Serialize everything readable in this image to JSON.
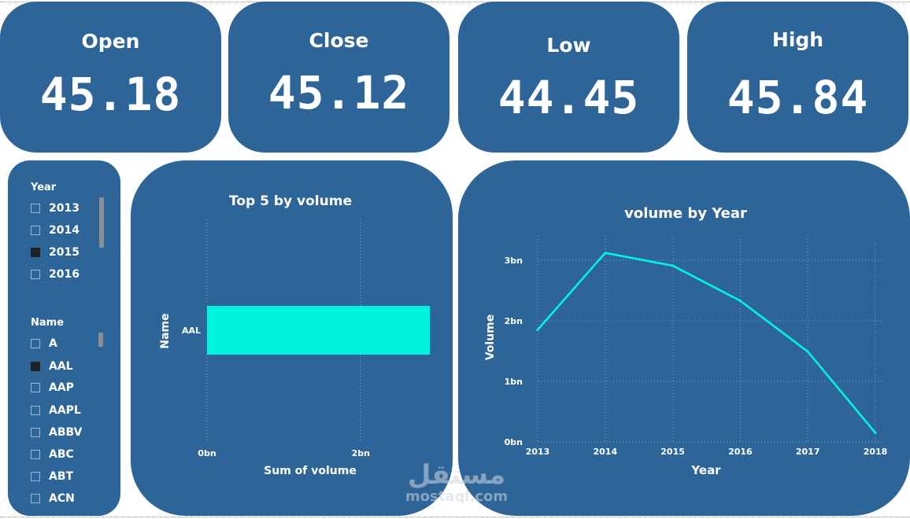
{
  "kpis": [
    {
      "label": "Open",
      "value": "45.18"
    },
    {
      "label": "Close",
      "value": "45.12"
    },
    {
      "label": "Low",
      "value": "44.45"
    },
    {
      "label": "High",
      "value": "45.84"
    }
  ],
  "slicers": {
    "year": {
      "title": "Year",
      "items": [
        {
          "label": "2013",
          "checked": false
        },
        {
          "label": "2014",
          "checked": false
        },
        {
          "label": "2015",
          "checked": true
        },
        {
          "label": "2016",
          "checked": false
        }
      ]
    },
    "name": {
      "title": "Name",
      "items": [
        {
          "label": "A",
          "checked": false
        },
        {
          "label": "AAL",
          "checked": true
        },
        {
          "label": "AAP",
          "checked": false
        },
        {
          "label": "AAPL",
          "checked": false
        },
        {
          "label": "ABBV",
          "checked": false
        },
        {
          "label": "ABC",
          "checked": false
        },
        {
          "label": "ABT",
          "checked": false
        },
        {
          "label": "ACN",
          "checked": false
        }
      ]
    }
  },
  "watermark": {
    "arabic": "مستقل",
    "latin": "mostaql.com"
  },
  "colors": {
    "card": "#2d6599",
    "series": "#00f5e1",
    "background": "#ffffff"
  },
  "chart_data": [
    {
      "type": "bar",
      "orientation": "horizontal",
      "title": "Top 5 by volume",
      "xlabel": "Sum of volume",
      "ylabel": "Name",
      "categories": [
        "AAL"
      ],
      "values": [
        2.9
      ],
      "value_unit": "bn",
      "xlim": [
        0,
        3
      ],
      "xticks": [
        0,
        2
      ],
      "xtick_labels": [
        "0bn",
        "2bn"
      ],
      "grid": "vertical dotted"
    },
    {
      "type": "line",
      "title": "volume by Year",
      "xlabel": "Year",
      "ylabel": "Volume",
      "x": [
        "2013",
        "2014",
        "2015",
        "2016",
        "2017",
        "2018"
      ],
      "values": [
        1.85,
        3.12,
        2.91,
        2.33,
        1.49,
        0.15
      ],
      "value_unit": "bn",
      "ylim": [
        0,
        3.4
      ],
      "yticks": [
        0,
        1,
        2,
        3
      ],
      "ytick_labels": [
        "0bn",
        "1bn",
        "2bn",
        "3bn"
      ],
      "grid": "both dotted"
    }
  ]
}
